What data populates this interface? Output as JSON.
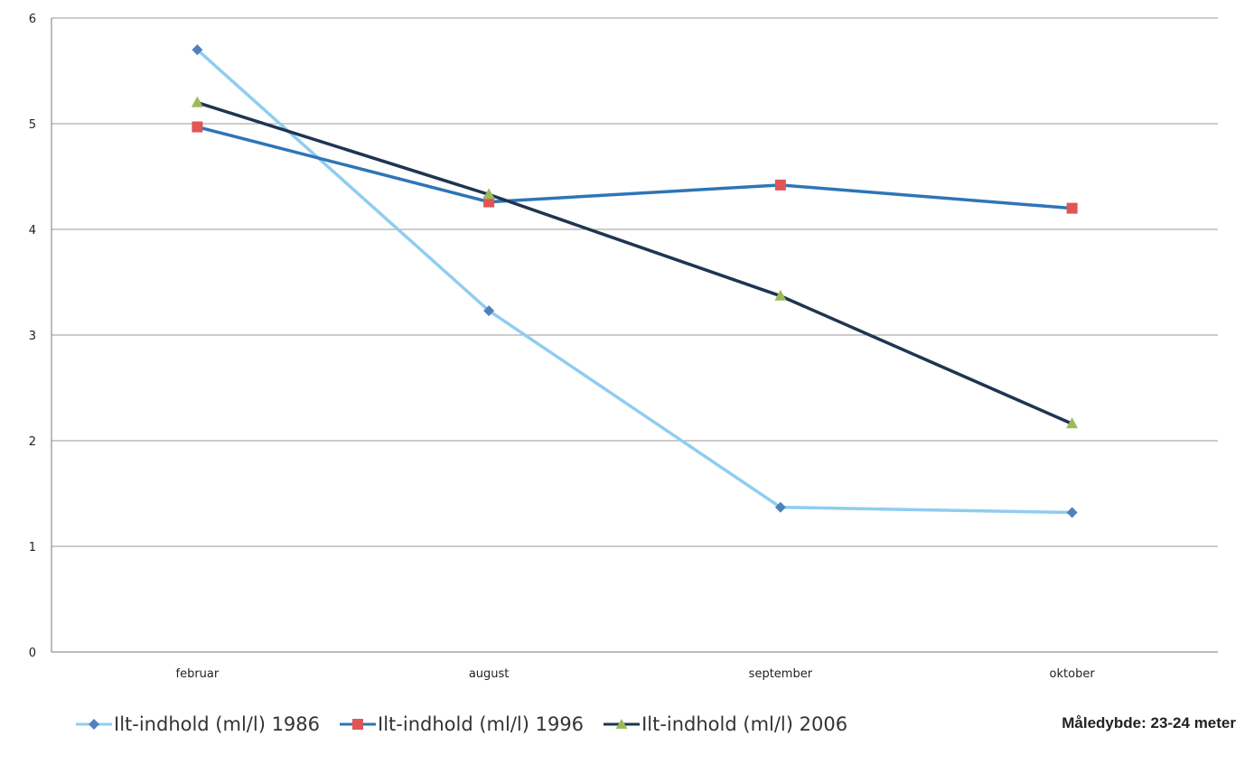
{
  "chart_data": {
    "type": "line",
    "categories": [
      "februar",
      "august",
      "september",
      "oktober"
    ],
    "series": [
      {
        "name": "Ilt-indhold (ml/l) 1986",
        "values": [
          5.7,
          3.23,
          1.37,
          1.32
        ],
        "color": "#8fcdf0",
        "marker_color": "#4f81bd",
        "marker": "diamond"
      },
      {
        "name": "Ilt-indhold (ml/l) 1996",
        "values": [
          4.97,
          4.26,
          4.42,
          4.2
        ],
        "color": "#2e75b6",
        "marker_color": "#e05555",
        "marker": "square"
      },
      {
        "name": "Ilt-indhold (ml/l) 2006",
        "values": [
          5.2,
          4.33,
          3.37,
          2.16
        ],
        "color": "#1f3552",
        "marker_color": "#9bbb59",
        "marker": "triangle"
      }
    ],
    "yticks": [
      0,
      1,
      2,
      3,
      4,
      5,
      6
    ],
    "ylim": [
      0,
      6
    ],
    "grid": true,
    "legend_position": "bottom"
  },
  "note": "Måledybde: 23-24 meter"
}
